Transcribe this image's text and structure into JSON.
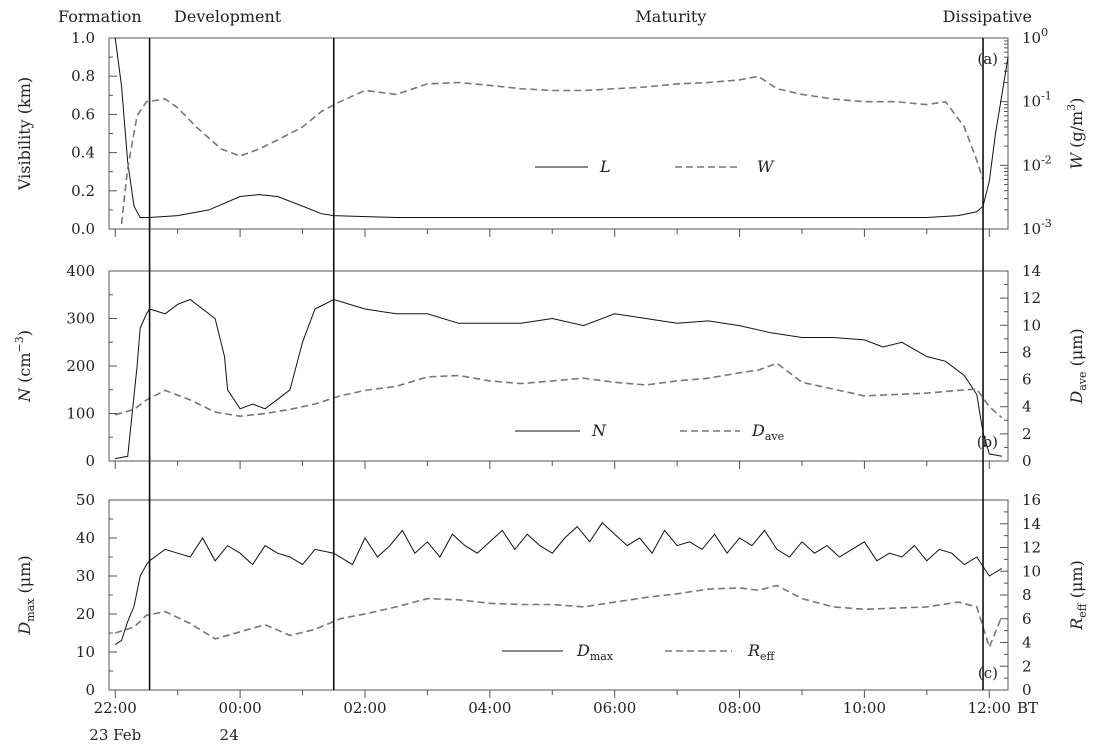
{
  "stages": [
    {
      "name": "Formation",
      "t": -0.5
    },
    {
      "name": "Development",
      "t": 1.8
    },
    {
      "name": "Maturity",
      "t": 8.9
    },
    {
      "name": "Dissipative",
      "t": 14.5
    }
  ],
  "stage_boundaries": [
    0.55,
    3.5,
    13.9
  ],
  "x_axis": {
    "ticks": [
      {
        "t": 0,
        "label": "22:00"
      },
      {
        "t": 2,
        "label": "00:00"
      },
      {
        "t": 4,
        "label": "02:00"
      },
      {
        "t": 6,
        "label": "04:00"
      },
      {
        "t": 8,
        "label": "06:00"
      },
      {
        "t": 10,
        "label": "08:00"
      },
      {
        "t": 12,
        "label": "10:00"
      },
      {
        "t": 14,
        "label": "12:00"
      }
    ],
    "unit": "BT",
    "date_labels": [
      {
        "t": 0,
        "label": "23 Feb"
      },
      {
        "t": 2,
        "label": "24"
      }
    ]
  },
  "chart_data": [
    {
      "type": "line",
      "panel": "(a)",
      "xlim": [
        -0.1,
        14.3
      ],
      "left_axis": {
        "label": "Visibility (km)",
        "ylim": [
          0,
          1.0
        ],
        "ticks": [
          "0.0",
          "0.2",
          "0.4",
          "0.6",
          "0.8",
          "1.0"
        ]
      },
      "right_axis": {
        "label_main": "W",
        "label_unit": "(g/m",
        "label_sup": "3",
        "label_end": ")",
        "scale": "log",
        "ylim": [
          0.001,
          1
        ],
        "ticks": [
          {
            "base": "10",
            "exp": "-3"
          },
          {
            "base": "10",
            "exp": "-2"
          },
          {
            "base": "10",
            "exp": "-1"
          },
          {
            "base": "10",
            "exp": "0"
          }
        ]
      },
      "series": [
        {
          "name": "L",
          "axis": "left",
          "style": "solid",
          "x": [
            0,
            0.1,
            0.2,
            0.3,
            0.4,
            0.55,
            1.0,
            1.5,
            2.0,
            2.3,
            2.6,
            3.0,
            3.3,
            3.5,
            4.5,
            6.0,
            8.0,
            10.0,
            12.0,
            13.0,
            13.5,
            13.8,
            13.9,
            14.0,
            14.1,
            14.2,
            14.3
          ],
          "values": [
            1.0,
            0.75,
            0.35,
            0.12,
            0.06,
            0.06,
            0.07,
            0.1,
            0.17,
            0.18,
            0.17,
            0.12,
            0.08,
            0.07,
            0.06,
            0.06,
            0.06,
            0.06,
            0.06,
            0.06,
            0.07,
            0.09,
            0.12,
            0.25,
            0.5,
            0.7,
            0.9
          ]
        },
        {
          "name": "W",
          "axis": "right",
          "style": "dashed",
          "x": [
            0.1,
            0.2,
            0.35,
            0.5,
            0.8,
            1.0,
            1.3,
            1.7,
            2.0,
            2.3,
            2.6,
            3.0,
            3.3,
            3.6,
            4.0,
            4.5,
            5.0,
            5.5,
            6.0,
            6.5,
            7.0,
            7.5,
            8.0,
            8.5,
            9.0,
            9.5,
            10.0,
            10.3,
            10.6,
            11.0,
            11.5,
            12.0,
            12.5,
            13.0,
            13.3,
            13.6,
            13.8,
            13.9
          ],
          "values": [
            0.0012,
            0.009,
            0.06,
            0.1,
            0.11,
            0.08,
            0.04,
            0.018,
            0.014,
            0.018,
            0.025,
            0.04,
            0.07,
            0.1,
            0.15,
            0.13,
            0.19,
            0.2,
            0.18,
            0.16,
            0.15,
            0.15,
            0.16,
            0.17,
            0.19,
            0.2,
            0.22,
            0.25,
            0.16,
            0.13,
            0.11,
            0.1,
            0.1,
            0.09,
            0.1,
            0.04,
            0.012,
            0.006
          ]
        }
      ],
      "legend": [
        {
          "name": "L",
          "style": "solid"
        },
        {
          "name": "W",
          "style": "dashed"
        }
      ]
    },
    {
      "type": "line",
      "panel": "(b)",
      "xlim": [
        -0.1,
        14.3
      ],
      "left_axis": {
        "label_main": "N",
        "label_unit": "(cm",
        "label_sup": "−3",
        "label_end": ")",
        "ylim": [
          0,
          400
        ],
        "ticks": [
          "0",
          "100",
          "200",
          "300",
          "400"
        ]
      },
      "right_axis": {
        "label_main": "D",
        "label_sub": "ave",
        "label_unit": "(μm)",
        "ylim": [
          0,
          14
        ],
        "ticks": [
          "0",
          "2",
          "4",
          "6",
          "8",
          "10",
          "12",
          "14"
        ]
      },
      "series": [
        {
          "name": "N",
          "axis": "left",
          "style": "solid",
          "x": [
            0,
            0.2,
            0.35,
            0.4,
            0.5,
            0.55,
            0.8,
            1.0,
            1.2,
            1.4,
            1.6,
            1.75,
            1.8,
            2.0,
            2.2,
            2.4,
            2.6,
            2.8,
            3.0,
            3.2,
            3.5,
            4.0,
            4.5,
            5.0,
            5.5,
            6.0,
            6.5,
            7.0,
            7.5,
            8.0,
            8.5,
            9.0,
            9.5,
            10.0,
            10.5,
            11.0,
            11.5,
            12.0,
            12.3,
            12.6,
            13.0,
            13.3,
            13.6,
            13.8,
            13.9,
            14.0,
            14.2
          ],
          "values": [
            5,
            10,
            200,
            280,
            310,
            320,
            310,
            330,
            340,
            320,
            300,
            220,
            150,
            110,
            120,
            110,
            130,
            150,
            250,
            320,
            340,
            320,
            310,
            310,
            290,
            290,
            290,
            300,
            285,
            310,
            300,
            290,
            295,
            285,
            270,
            260,
            260,
            255,
            240,
            250,
            220,
            210,
            180,
            140,
            60,
            15,
            10
          ]
        },
        {
          "name": "Dave",
          "axis": "right",
          "style": "dashed",
          "x": [
            0,
            0.3,
            0.5,
            0.8,
            1.2,
            1.6,
            2.0,
            2.4,
            2.8,
            3.2,
            3.6,
            4.0,
            4.5,
            5.0,
            5.5,
            6.0,
            6.5,
            7.0,
            7.5,
            8.0,
            8.5,
            9.0,
            9.5,
            10.0,
            10.3,
            10.6,
            11.0,
            11.5,
            12.0,
            12.5,
            13.0,
            13.5,
            13.8,
            14.0,
            14.2
          ],
          "values": [
            3.4,
            3.8,
            4.5,
            5.2,
            4.5,
            3.6,
            3.3,
            3.5,
            3.8,
            4.2,
            4.8,
            5.2,
            5.5,
            6.2,
            6.3,
            5.9,
            5.7,
            5.9,
            6.1,
            5.8,
            5.6,
            5.9,
            6.1,
            6.5,
            6.7,
            7.2,
            5.8,
            5.3,
            4.8,
            4.9,
            5.0,
            5.2,
            5.3,
            4.0,
            3.2
          ]
        }
      ],
      "legend": [
        {
          "name": "N",
          "style": "solid"
        },
        {
          "name": "D",
          "sub": "ave",
          "style": "dashed"
        }
      ]
    },
    {
      "type": "line",
      "panel": "(c)",
      "xlim": [
        -0.1,
        14.3
      ],
      "left_axis": {
        "label_main": "D",
        "label_sub": "max",
        "label_unit": "(μm)",
        "ylim": [
          0,
          50
        ],
        "ticks": [
          "0",
          "10",
          "20",
          "30",
          "40",
          "50"
        ]
      },
      "right_axis": {
        "label_main": "R",
        "label_sub": "eff",
        "label_unit": "(μm)",
        "ylim": [
          0,
          16
        ],
        "ticks": [
          "0",
          "2",
          "4",
          "6",
          "8",
          "10",
          "12",
          "14",
          "16"
        ]
      },
      "series": [
        {
          "name": "Dmax",
          "axis": "left",
          "style": "solid",
          "x": [
            0,
            0.1,
            0.2,
            0.3,
            0.4,
            0.5,
            0.55,
            0.8,
            1.0,
            1.2,
            1.4,
            1.6,
            1.8,
            2.0,
            2.2,
            2.4,
            2.6,
            2.8,
            3.0,
            3.2,
            3.5,
            3.8,
            4.0,
            4.2,
            4.4,
            4.6,
            4.8,
            5.0,
            5.2,
            5.4,
            5.6,
            5.8,
            6.0,
            6.2,
            6.4,
            6.6,
            6.8,
            7.0,
            7.2,
            7.4,
            7.6,
            7.8,
            8.0,
            8.2,
            8.4,
            8.6,
            8.8,
            9.0,
            9.2,
            9.4,
            9.6,
            9.8,
            10.0,
            10.2,
            10.4,
            10.6,
            10.8,
            11.0,
            11.2,
            11.4,
            11.6,
            11.8,
            12.0,
            12.2,
            12.4,
            12.6,
            12.8,
            13.0,
            13.2,
            13.4,
            13.6,
            13.8,
            14.0,
            14.2
          ],
          "values": [
            12,
            13,
            18,
            22,
            30,
            33,
            34,
            37,
            36,
            35,
            40,
            34,
            38,
            36,
            33,
            38,
            36,
            35,
            33,
            37,
            36,
            33,
            40,
            35,
            38,
            42,
            36,
            39,
            35,
            41,
            38,
            36,
            39,
            42,
            37,
            41,
            38,
            36,
            40,
            43,
            39,
            44,
            41,
            38,
            40,
            36,
            42,
            38,
            39,
            37,
            41,
            36,
            40,
            38,
            42,
            37,
            35,
            39,
            36,
            38,
            35,
            37,
            39,
            34,
            36,
            35,
            38,
            34,
            37,
            36,
            33,
            35,
            30,
            32
          ]
        },
        {
          "name": "Reff",
          "axis": "right",
          "style": "dashed",
          "x": [
            0,
            0.3,
            0.5,
            0.8,
            1.2,
            1.6,
            2.0,
            2.4,
            2.8,
            3.2,
            3.6,
            4.0,
            4.5,
            5.0,
            5.5,
            6.0,
            6.5,
            7.0,
            7.5,
            8.0,
            8.5,
            9.0,
            9.5,
            10.0,
            10.3,
            10.6,
            11.0,
            11.5,
            12.0,
            12.5,
            13.0,
            13.5,
            13.8,
            14.0,
            14.2
          ],
          "values": [
            4.8,
            5.3,
            6.3,
            6.6,
            5.6,
            4.3,
            4.9,
            5.5,
            4.6,
            5.1,
            6.0,
            6.4,
            7.0,
            7.7,
            7.6,
            7.3,
            7.2,
            7.2,
            7.0,
            7.4,
            7.8,
            8.1,
            8.5,
            8.6,
            8.4,
            8.8,
            7.7,
            7.0,
            6.8,
            6.9,
            7.0,
            7.4,
            7.0,
            3.6,
            6.2
          ]
        }
      ],
      "legend": [
        {
          "name": "D",
          "sub": "max",
          "style": "solid"
        },
        {
          "name": "R",
          "sub": "eff",
          "style": "dashed"
        }
      ]
    }
  ]
}
